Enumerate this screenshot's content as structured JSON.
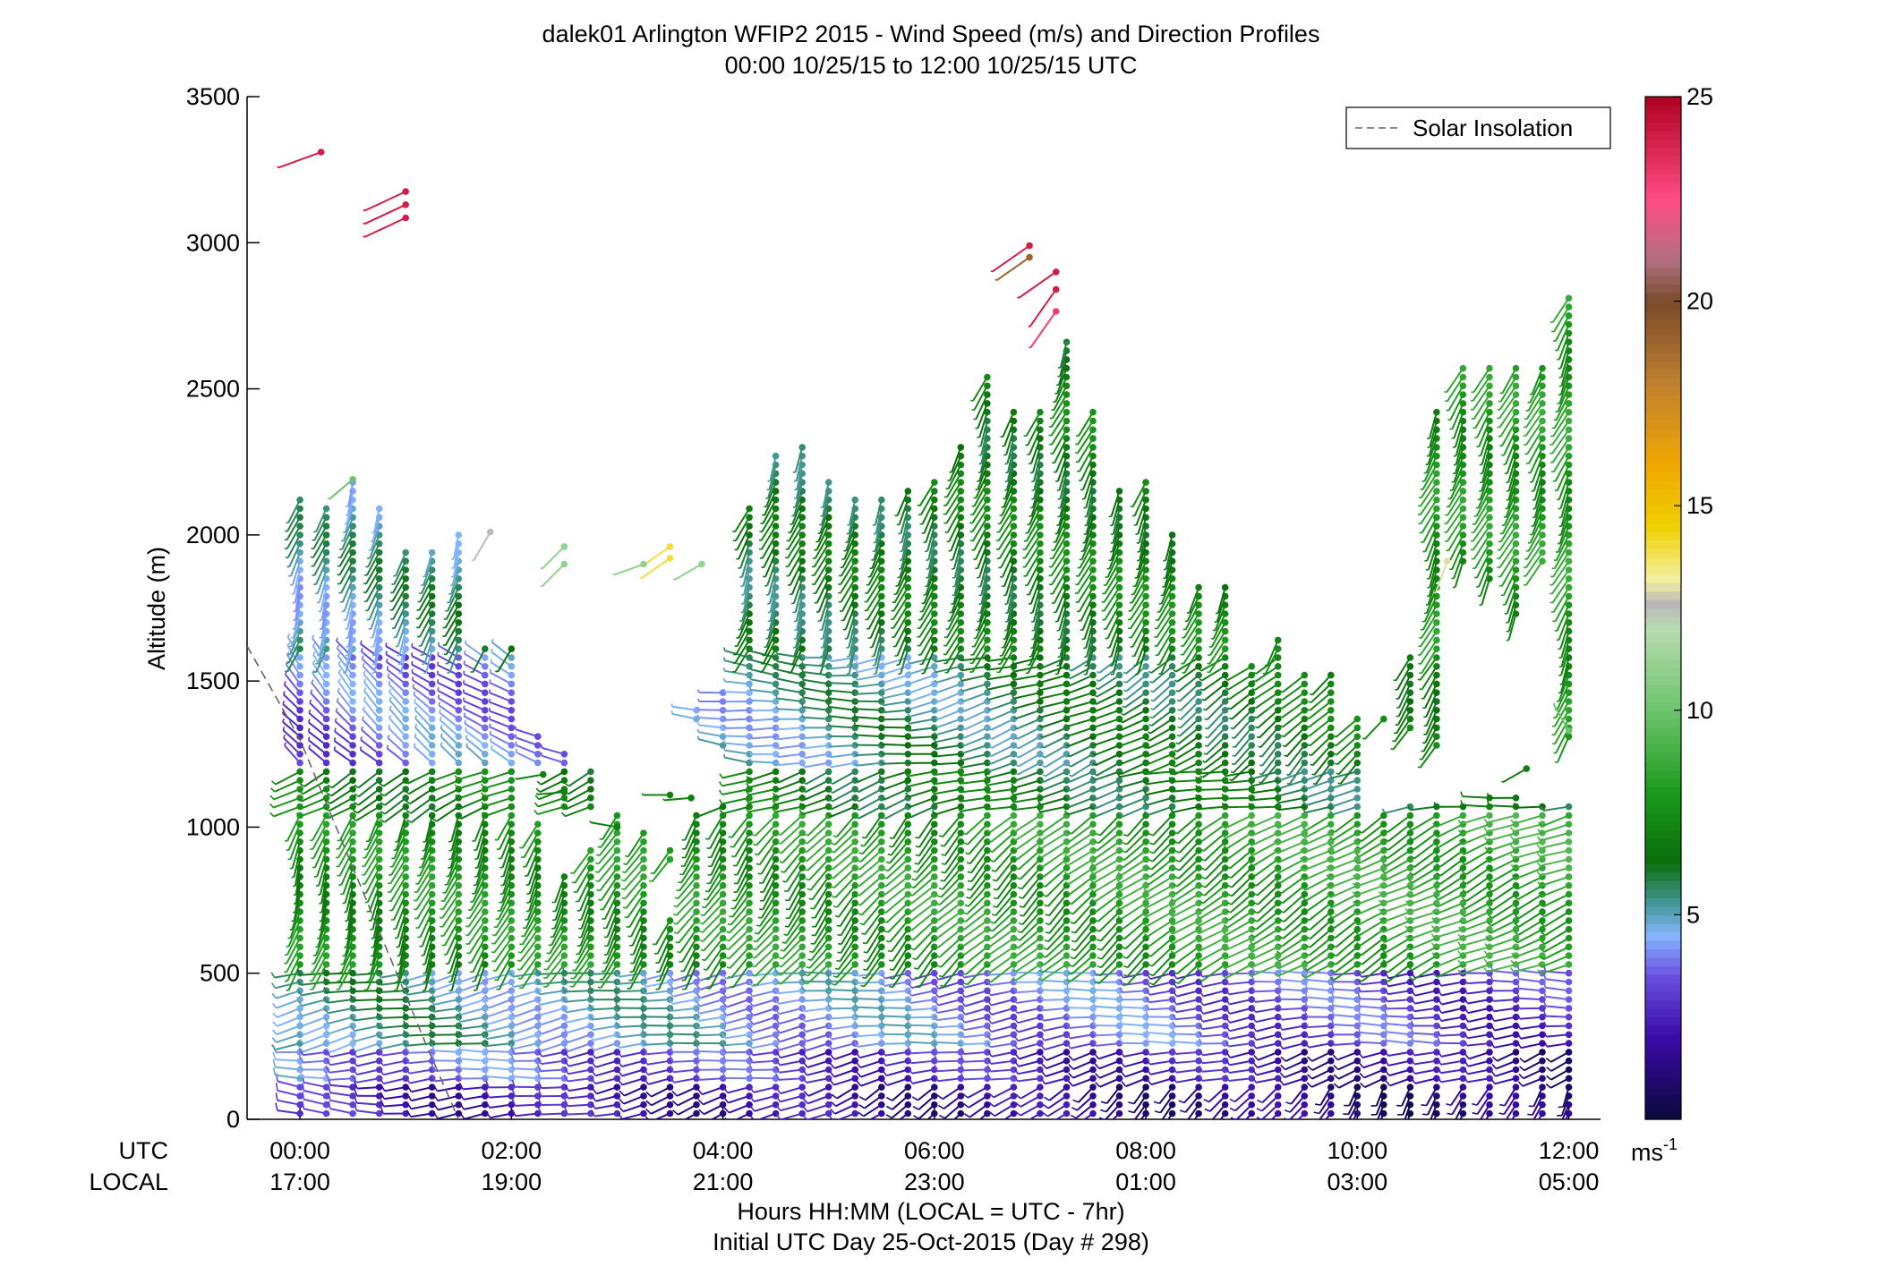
{
  "chart_data": {
    "type": "wind-barb-profile",
    "title": "dalek01 Arlington WFIP2 2015 - Wind Speed (m/s) and Direction Profiles",
    "subtitle": "00:00 10/25/15 to 12:00 10/25/15  UTC",
    "ylabel": "Altitude (m)",
    "xlabel_line1": "Hours HH:MM  (LOCAL = UTC - 7hr)",
    "xlabel_line2": "Initial UTC Day 25-Oct-2015 (Day # 298)",
    "ylim": [
      0,
      3500
    ],
    "xlim_hours_utc": [
      -0.5,
      12.3
    ],
    "yticks": [
      0,
      500,
      1000,
      1500,
      2000,
      2500,
      3000,
      3500
    ],
    "ytick_labels": [
      "0",
      "500",
      "1000",
      "1500",
      "2000",
      "2500",
      "3000",
      "3500"
    ],
    "xticks_hours_utc": [
      0,
      2,
      4,
      6,
      8,
      10,
      12
    ],
    "utc_row_label": "UTC",
    "local_row_label": "LOCAL",
    "utc_tick_labels": [
      "00:00",
      "02:00",
      "04:00",
      "06:00",
      "08:00",
      "10:00",
      "12:00"
    ],
    "local_tick_labels": [
      "17:00",
      "19:00",
      "21:00",
      "23:00",
      "01:00",
      "03:00",
      "05:00"
    ],
    "legend": {
      "label": "Solar Insolation",
      "position": "top-right",
      "line_style": "dashed",
      "color": "#666666"
    },
    "solar_insolation_curve": {
      "hours_utc": [
        -0.5,
        0.0,
        0.4,
        0.8,
        1.2,
        1.5
      ],
      "altitude_m": [
        1620,
        1300,
        950,
        600,
        250,
        0
      ]
    },
    "colorbar": {
      "min": 0,
      "max": 25,
      "ticks": [
        5,
        10,
        15,
        20,
        25
      ],
      "tick_labels": [
        "5",
        "10",
        "15",
        "20",
        "25"
      ],
      "unit_label": "ms",
      "unit_exponent": "-1",
      "stops": [
        {
          "v": 0,
          "c": "#0a0a3c"
        },
        {
          "v": 2,
          "c": "#3a0aa8"
        },
        {
          "v": 3.5,
          "c": "#6a4ee0"
        },
        {
          "v": 4.5,
          "c": "#86b6ff"
        },
        {
          "v": 5.2,
          "c": "#4a9aa0"
        },
        {
          "v": 6.3,
          "c": "#0a6e0a"
        },
        {
          "v": 8,
          "c": "#1c9a1c"
        },
        {
          "v": 10,
          "c": "#6cc46c"
        },
        {
          "v": 12,
          "c": "#b8dcb0"
        },
        {
          "v": 12.6,
          "c": "#b8b8b8"
        },
        {
          "v": 13.2,
          "c": "#f4f0a0"
        },
        {
          "v": 14.5,
          "c": "#f0d000"
        },
        {
          "v": 16,
          "c": "#f0a800"
        },
        {
          "v": 18,
          "c": "#c08030"
        },
        {
          "v": 20,
          "c": "#7a4a2a"
        },
        {
          "v": 21,
          "c": "#b07080"
        },
        {
          "v": 22.5,
          "c": "#ff4c84"
        },
        {
          "v": 25,
          "c": "#b00020"
        }
      ]
    },
    "profiles_hours_utc": [
      0,
      0.25,
      0.5,
      0.75,
      1.0,
      1.25,
      1.5,
      1.75,
      2.0,
      2.25,
      2.5,
      2.75,
      3.0,
      3.25,
      3.5,
      3.75,
      4.0,
      4.25,
      4.5,
      4.75,
      5.0,
      5.25,
      5.5,
      5.75,
      6.0,
      6.25,
      6.5,
      6.75,
      7.0,
      7.25,
      7.5,
      7.75,
      8.0,
      8.25,
      8.5,
      8.75,
      9.0,
      9.25,
      9.5,
      9.75,
      10.0,
      10.25,
      10.5,
      10.75,
      11.0,
      11.25,
      11.5,
      11.75,
      12.0
    ],
    "profile_tops_m": [
      2130,
      2100,
      2190,
      2090,
      1960,
      1960,
      2010,
      1630,
      1620,
      1330,
      1250,
      1200,
      1060,
      1000,
      920,
      1410,
      1460,
      2100,
      2270,
      2310,
      2200,
      2140,
      2140,
      2170,
      2200,
      2320,
      2540,
      2440,
      2440,
      2680,
      2440,
      2160,
      2180,
      2000,
      1840,
      1820,
      1560,
      1660,
      1530,
      1530,
      1390,
      1380,
      1600,
      2440,
      2580,
      2580,
      2580,
      2580,
      2830
    ],
    "profile_gaps_m": [
      [],
      [],
      [],
      [],
      [],
      [],
      [],
      [],
      [],
      [
        1020,
        1200
      ],
      [
        860,
        1040
      ],
      [
        940,
        1060
      ],
      [],
      [],
      [
        700,
        880
      ],
      [
        1070,
        1340
      ],
      [
        1100,
        1260
      ],
      [],
      [],
      [],
      [],
      [],
      [],
      [],
      [],
      [],
      [],
      [],
      [],
      [],
      [],
      [],
      [],
      [],
      [],
      [],
      [],
      [],
      [],
      [],
      [],
      [
        1060,
        1360
      ],
      [
        1100,
        1320
      ],
      [
        1090,
        1260
      ],
      [
        1100,
        1880
      ],
      [
        1110,
        1840
      ],
      [
        1110,
        1720
      ],
      [
        1100,
        1880
      ],
      [
        1100,
        1290
      ]
    ],
    "layers": [
      {
        "z0": 0,
        "z1": 120,
        "speed_early": 2.5,
        "speed_late": 1.0,
        "dir_early": 275,
        "dir_late": 200,
        "barb_early": 0.45,
        "barb_late": 0.3
      },
      {
        "z0": 120,
        "z1": 260,
        "speed_early": 4.0,
        "speed_late": 1.5,
        "dir_early": 268,
        "dir_late": 250,
        "barb_early": 0.45,
        "barb_late": 0.35
      },
      {
        "z0": 260,
        "z1": 520,
        "speed_early": 5.5,
        "speed_late": 2.8,
        "dir_early": 258,
        "dir_late": 268,
        "barb_early": 0.35,
        "barb_late": 0.3
      },
      {
        "z0": 520,
        "z1": 1050,
        "speed_early": 7.5,
        "speed_late": 8.5,
        "dir_early": 198,
        "dir_late": 248,
        "barb_early": 0.15,
        "barb_late": 0.3
      },
      {
        "z0": 1050,
        "z1": 1200,
        "speed_early": 7.0,
        "speed_late": 6.0,
        "dir_early": 240,
        "dir_late": 265,
        "barb_early": 0.3,
        "barb_late": 0.3
      },
      {
        "z0": 1200,
        "z1": 1600,
        "speed_early": 3.5,
        "speed_late": 7.5,
        "dir_early": 320,
        "dir_late": 200,
        "barb_early": 0.2,
        "barb_late": 0.15
      },
      {
        "z0": 1600,
        "z1": 3500,
        "speed_early": 5.0,
        "speed_late": 8.0,
        "dir_early": 200,
        "dir_late": 205,
        "barb_early": 0.15,
        "barb_late": 0.15
      }
    ],
    "isolated_barbs": [
      {
        "h": 0.2,
        "alt": 3310,
        "speed": 24,
        "dir": 250
      },
      {
        "h": 1.0,
        "alt": 3175,
        "speed": 24,
        "dir": 245
      },
      {
        "h": 1.0,
        "alt": 3130,
        "speed": 24,
        "dir": 245
      },
      {
        "h": 1.0,
        "alt": 3085,
        "speed": 24,
        "dir": 245
      },
      {
        "h": 6.9,
        "alt": 2990,
        "speed": 24,
        "dir": 235
      },
      {
        "h": 6.9,
        "alt": 2950,
        "speed": 19,
        "dir": 235
      },
      {
        "h": 7.15,
        "alt": 2900,
        "speed": 24,
        "dir": 235
      },
      {
        "h": 7.15,
        "alt": 2840,
        "speed": 24,
        "dir": 215
      },
      {
        "h": 7.15,
        "alt": 2765,
        "speed": 23,
        "dir": 215
      },
      {
        "h": 3.5,
        "alt": 1960,
        "speed": 14,
        "dir": 235
      },
      {
        "h": 3.5,
        "alt": 1920,
        "speed": 14,
        "dir": 235
      },
      {
        "h": 3.25,
        "alt": 1900,
        "speed": 11,
        "dir": 250
      },
      {
        "h": 3.8,
        "alt": 1900,
        "speed": 11,
        "dir": 240
      },
      {
        "h": 1.8,
        "alt": 2010,
        "speed": 12.5,
        "dir": 210
      },
      {
        "h": 2.5,
        "alt": 1960,
        "speed": 11,
        "dir": 225
      },
      {
        "h": 2.5,
        "alt": 1900,
        "speed": 11,
        "dir": 225
      },
      {
        "h": 0.5,
        "alt": 2190,
        "speed": 10,
        "dir": 230
      },
      {
        "h": 10.85,
        "alt": 1910,
        "speed": 13,
        "dir": 200
      },
      {
        "h": 2.3,
        "alt": 1180,
        "speed": 7,
        "dir": 260
      },
      {
        "h": 2.5,
        "alt": 1120,
        "speed": 7,
        "dir": 265
      },
      {
        "h": 3.0,
        "alt": 1000,
        "speed": 7,
        "dir": 280
      },
      {
        "h": 3.5,
        "alt": 1110,
        "speed": 7,
        "dir": 270
      },
      {
        "h": 3.7,
        "alt": 1100,
        "speed": 7,
        "dir": 265
      },
      {
        "h": 11.6,
        "alt": 1200,
        "speed": 7,
        "dir": 240
      },
      {
        "h": 12.0,
        "alt": 1330,
        "speed": 10,
        "dir": 330
      }
    ]
  }
}
